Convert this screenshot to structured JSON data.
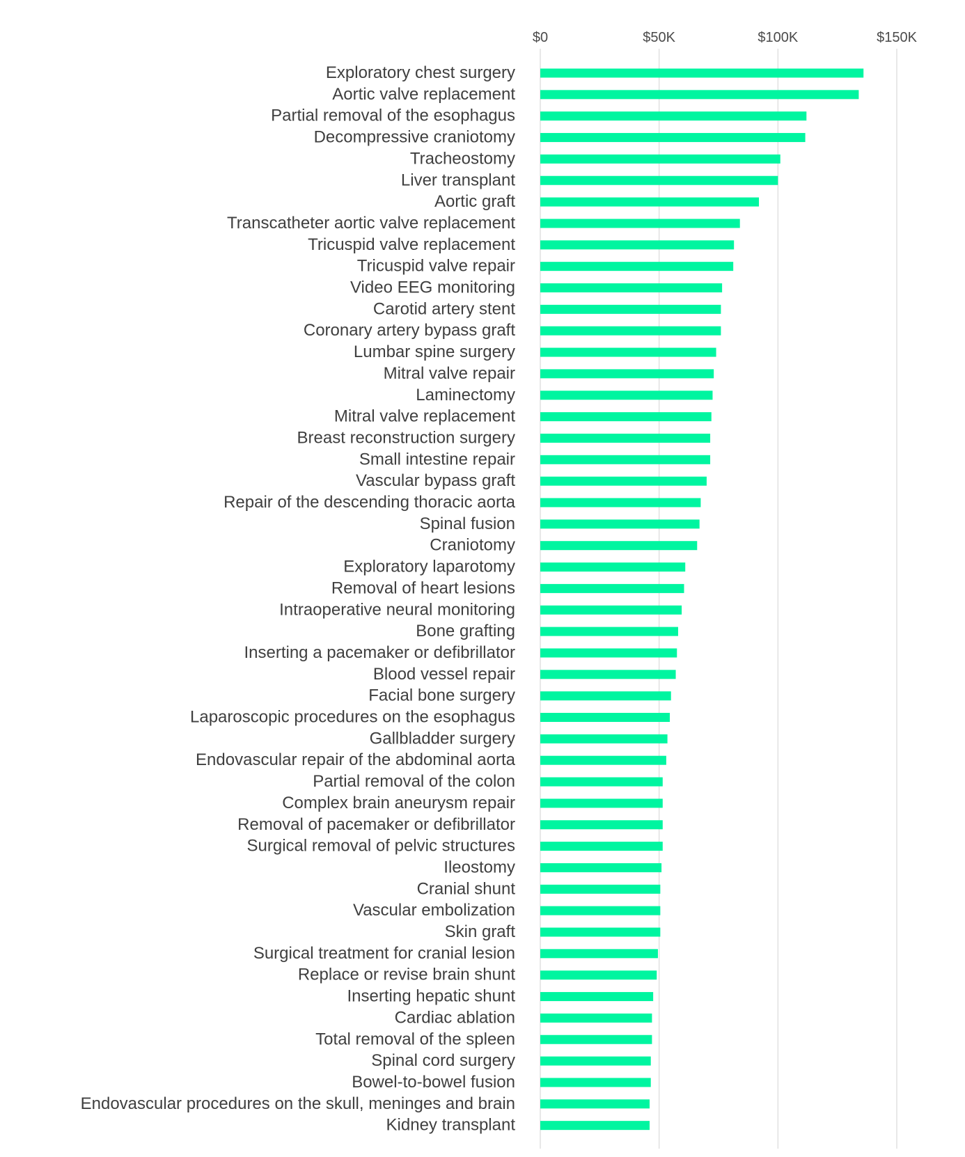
{
  "chart_data": {
    "type": "bar",
    "orientation": "horizontal",
    "bar_color": "#00f5a0",
    "grid": true,
    "legend": "none",
    "xlim": [
      0,
      150000
    ],
    "xticks": [
      {
        "value": 0,
        "label": "$0"
      },
      {
        "value": 50000,
        "label": "$50K"
      },
      {
        "value": 100000,
        "label": "$100K"
      },
      {
        "value": 150000,
        "label": "$150K"
      }
    ],
    "categories": [
      "Exploratory chest surgery",
      "Aortic valve replacement",
      "Partial removal of the esophagus",
      "Decompressive craniotomy",
      "Tracheostomy",
      "Liver transplant",
      "Aortic graft",
      "Transcatheter aortic valve replacement",
      "Tricuspid valve replacement",
      "Tricuspid valve repair",
      "Video EEG monitoring",
      "Carotid artery stent",
      "Coronary artery bypass graft",
      "Lumbar spine surgery",
      "Mitral valve repair",
      "Laminectomy",
      "Mitral valve replacement",
      "Breast reconstruction surgery",
      "Small intestine repair",
      "Vascular bypass graft",
      "Repair of the descending thoracic aorta",
      "Spinal fusion",
      "Craniotomy",
      "Exploratory laparotomy",
      "Removal of heart lesions",
      "Intraoperative neural monitoring",
      "Bone grafting",
      "Inserting a pacemaker or defibrillator",
      "Blood vessel repair",
      "Facial bone surgery",
      "Laparoscopic procedures on the esophagus",
      "Gallbladder surgery",
      "Endovascular repair of the abdominal aorta",
      "Partial removal of the colon",
      "Complex brain aneurysm repair",
      "Removal of pacemaker or defibrillator",
      "Surgical removal of pelvic structures",
      "Ileostomy",
      "Cranial shunt",
      "Vascular embolization",
      "Skin graft",
      "Surgical treatment for cranial lesion",
      "Replace or revise brain shunt",
      "Inserting hepatic shunt",
      "Cardiac ablation",
      "Total removal of the spleen",
      "Spinal cord surgery",
      "Bowel-to-bowel fusion",
      "Endovascular procedures on the skull, meninges and brain",
      "Kidney transplant"
    ],
    "values": [
      136000,
      134000,
      112000,
      111500,
      101000,
      100000,
      92000,
      84000,
      81500,
      81200,
      76500,
      76000,
      76000,
      74000,
      73000,
      72500,
      72000,
      71500,
      71500,
      70000,
      67500,
      67000,
      66000,
      61000,
      60500,
      59500,
      58000,
      57500,
      57000,
      55000,
      54500,
      53500,
      53000,
      51500,
      51500,
      51500,
      51500,
      51000,
      50500,
      50500,
      50500,
      49500,
      49000,
      47500,
      47000,
      47000,
      46500,
      46500,
      46000,
      46000
    ]
  }
}
